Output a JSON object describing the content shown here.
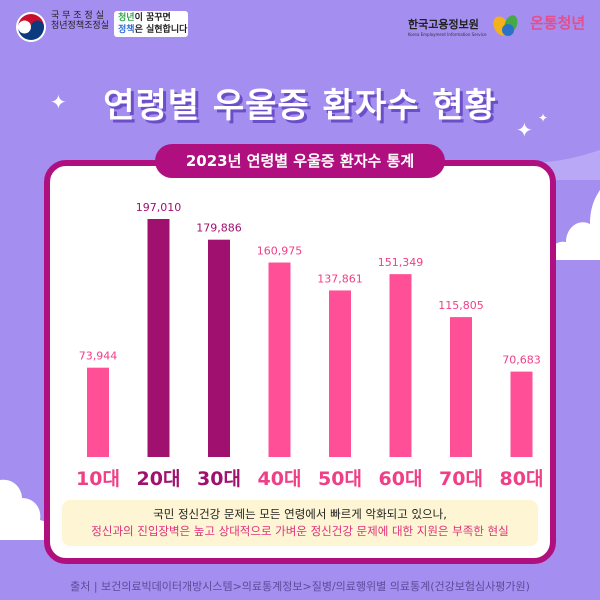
{
  "header": {
    "gov_name_line1": "국 무 조 정 실",
    "gov_name_line2": "청년정책조정실",
    "slogan_line1_a": "청년",
    "slogan_line1_b": "이 꿈꾸면",
    "slogan_line2_a": "정책",
    "slogan_line2_b": "은 실현합니다",
    "keis_name": "한국고용정보원",
    "keis_en": "Korea Employment Information Service",
    "ontong_name": "온통청년"
  },
  "title": "연령별 우울증 환자수 현황",
  "subtitle_pill": "2023년 연령별 우울증 환자수 통계",
  "chart_data": {
    "type": "bar",
    "categories": [
      "10대",
      "20대",
      "30대",
      "40대",
      "50대",
      "60대",
      "70대",
      "80대"
    ],
    "values": [
      73944,
      197010,
      179886,
      160975,
      137861,
      151349,
      115805,
      70683
    ],
    "value_labels": [
      "73,944",
      "197,010",
      "179,886",
      "160,975",
      "137,861",
      "151,349",
      "115,805",
      "70,683"
    ],
    "highlight_indices": [
      1,
      2
    ],
    "colors": {
      "default": "#ff4f96",
      "highlight": "#a0106f",
      "label_default": "#f03f86",
      "label_highlight": "#a0106f"
    },
    "ylim": [
      0,
      197010
    ],
    "grid": false,
    "legend": "none"
  },
  "note": {
    "line1": "국민 정신건강 문제는 모든 연령에서 빠르게 악화되고 있으나,",
    "line2": "정신과의 진입장벽은 높고 상대적으로 가벼운 정신건강 문제에 대한 지원은 부족한 현실"
  },
  "source": "출처 | 보건의료빅데이터개방시스템>의료통계정보>질병/의료행위별 의료통계(건강보험심사평가원)",
  "colors": {
    "background": "#a48ef0",
    "panel_border": "#b0107f",
    "note_bg": "#fdf5d3"
  }
}
